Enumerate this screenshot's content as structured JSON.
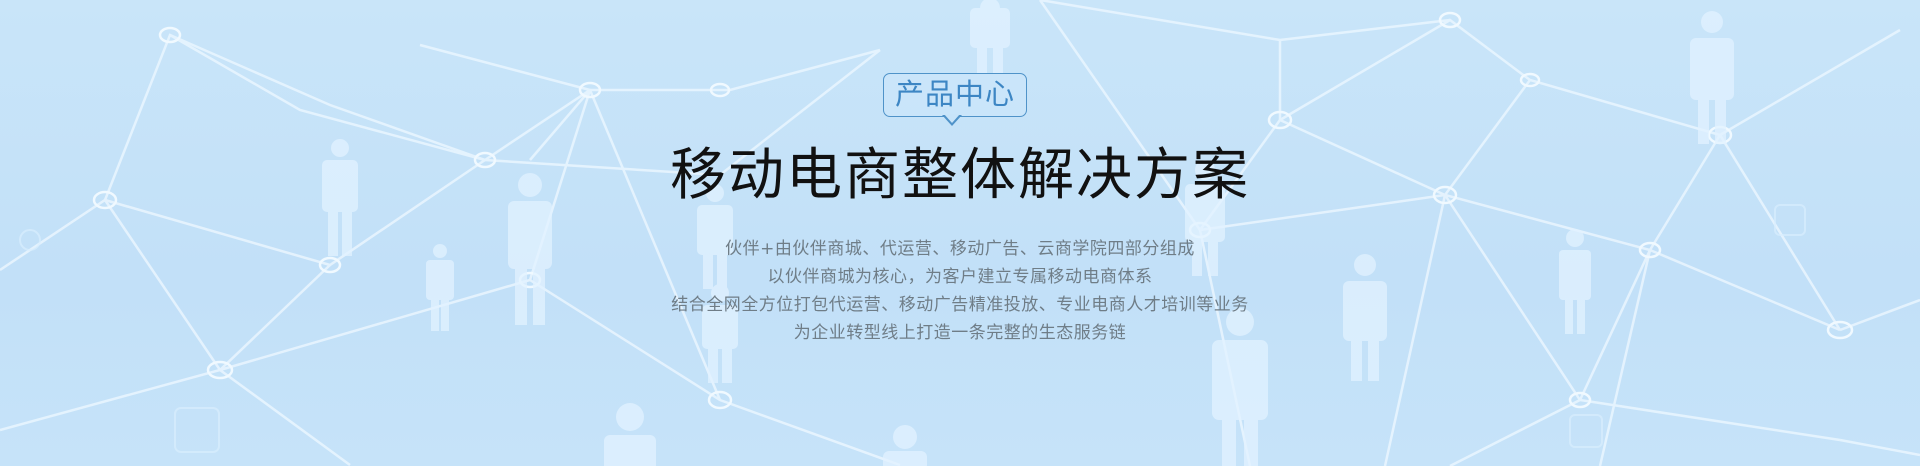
{
  "banner": {
    "tag_label": "产品中心",
    "title": "移动电商整体解决方案",
    "description_lines": [
      "伙伴+由伙伴商城、代运营、移动广告、云商学院四部分组成",
      "以伙伴商城为核心，为客户建立专属移动电商体系",
      "结合全网全方位打包代运营、移动广告精准投放、专业电商人才培训等业务",
      "为企业转型线上打造一条完整的生态服务链"
    ]
  },
  "background": {
    "icon": "network-people-icon",
    "colors": {
      "sky": "#c4e2f8",
      "lines": "#e9f5ff",
      "figures": "#dcefff"
    }
  },
  "colors": {
    "tag_border": "#4f93c9",
    "tag_text": "#3d86c4",
    "title_text": "#111111",
    "description_text": "#6f7d87"
  }
}
